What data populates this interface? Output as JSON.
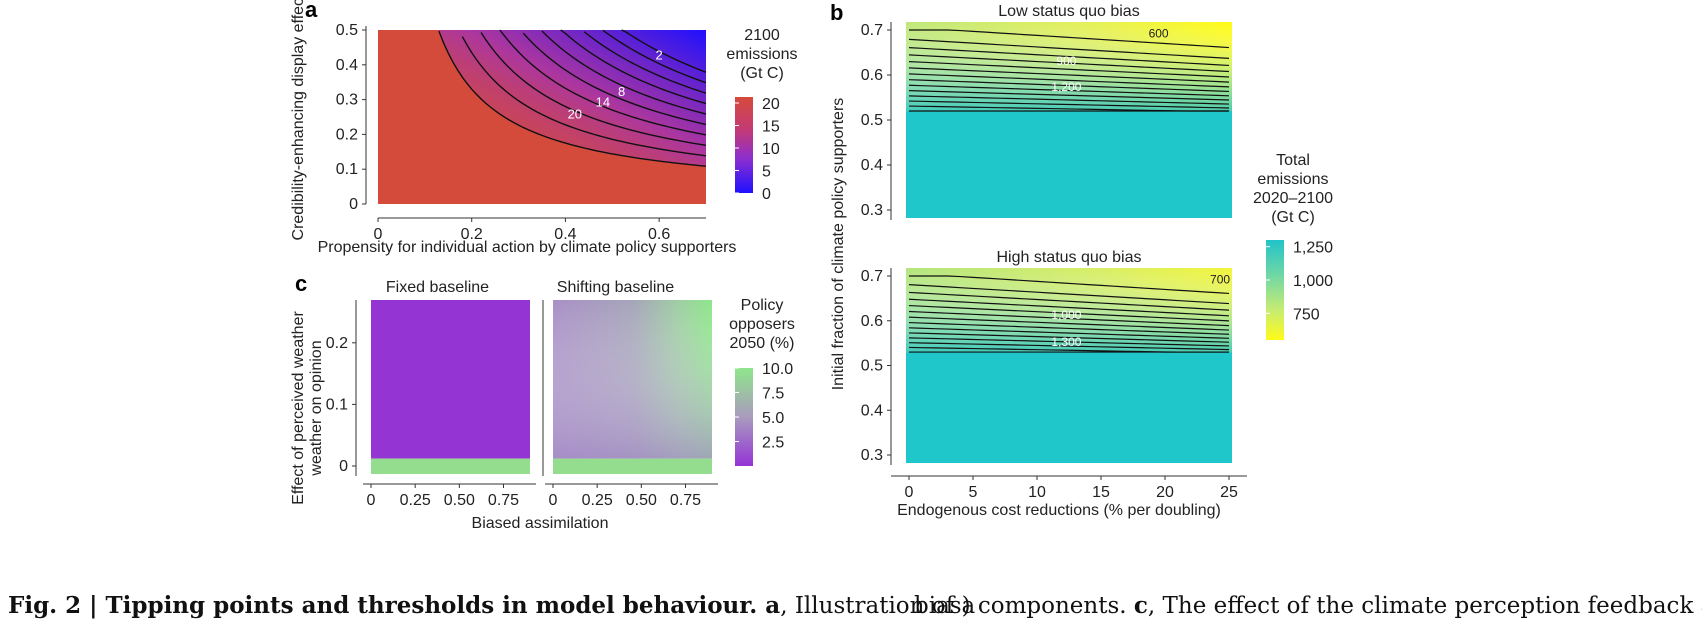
{
  "panel_a": {
    "letter": "a",
    "legend_title": [
      "2100",
      "emissions",
      "(Gt C)"
    ],
    "legend_ticks": [
      "20",
      "15",
      "10",
      "5",
      "0"
    ]
  },
  "panel_b": {
    "letter": "b",
    "legend_title": [
      "Total",
      "emissions",
      "2020–2100",
      "(Gt C)"
    ],
    "legend_ticks": [
      "1,250",
      "1,000",
      "750"
    ]
  },
  "panel_c": {
    "letter": "c",
    "legend_title": [
      "Policy",
      "opposers",
      "2050 (%)"
    ],
    "legend_ticks": [
      "10.0",
      "7.5",
      "5.0",
      "2.5"
    ]
  },
  "caption": {
    "left_bold": "Fig. 2 | Tipping points and thresholds in model behaviour. a",
    "left_rest": ", Illustration of a",
    "right_pre": "bias) components. ",
    "right_bold": "c",
    "right_rest": ", The effect of the climate perception feedback and"
  },
  "chart_data": [
    {
      "type": "heatmap",
      "panel": "a",
      "xlabel": "Propensity for individual action by climate policy supporters",
      "ylabel": "Credibility-enhancing display effect",
      "x_ticks": [
        "0",
        "0.2",
        "0.4",
        "0.6"
      ],
      "y_ticks": [
        "0",
        "0.1",
        "0.2",
        "0.3",
        "0.4",
        "0.5"
      ],
      "xlim": [
        0,
        0.7
      ],
      "ylim": [
        0,
        0.5
      ],
      "legend_title": "2100 emissions (Gt C)",
      "color_range": [
        0,
        21
      ],
      "contour_labels": [
        "2",
        "8",
        "14",
        "20"
      ],
      "contour_label_values": [
        2,
        8,
        14,
        20
      ],
      "contour_values": [
        20,
        18,
        16,
        14,
        12,
        10,
        8,
        6,
        4,
        2
      ],
      "contour_label_positions": [
        [
          0.6,
          0.415
        ],
        [
          0.52,
          0.31
        ],
        [
          0.48,
          0.28
        ],
        [
          0.42,
          0.245
        ]
      ],
      "note": "Uniform red (~21 Gt C) region below/left of the threshold curve; emissions fall steeply toward the upper right corner."
    },
    {
      "type": "heatmap",
      "panel": "b-top",
      "title": "Low status quo bias",
      "xlabel": "Endogenous cost reductions (% per doubling)",
      "ylabel": "Initial fraction of climate policy supporters",
      "x_ticks": [
        "0",
        "5",
        "10",
        "15",
        "20",
        "25"
      ],
      "y_ticks": [
        "0.3",
        "0.4",
        "0.5",
        "0.6",
        "0.7"
      ],
      "xlim": [
        0,
        25
      ],
      "ylim": [
        0.3,
        0.7
      ],
      "legend_title": "Total emissions 2020–2100 (Gt C)",
      "color_range": [
        550,
        1300
      ],
      "threshold_y": 0.52,
      "contour_labels": [
        "600",
        "900",
        "1,200"
      ],
      "contour_label_values": [
        600,
        900,
        1200
      ],
      "contour_label_positions": [
        [
          19.5,
          0.692
        ],
        [
          12.3,
          0.631
        ],
        [
          12.3,
          0.573
        ]
      ]
    },
    {
      "type": "heatmap",
      "panel": "b-bottom",
      "title": "High status quo bias",
      "xlabel": "Endogenous cost reductions (% per doubling)",
      "ylabel": "Initial fraction of climate policy supporters",
      "x_ticks": [
        "0",
        "5",
        "10",
        "15",
        "20",
        "25"
      ],
      "y_ticks": [
        "0.3",
        "0.4",
        "0.5",
        "0.6",
        "0.7"
      ],
      "xlim": [
        0,
        25
      ],
      "ylim": [
        0.3,
        0.7
      ],
      "legend_title": "Total emissions 2020–2100 (Gt C)",
      "color_range": [
        550,
        1300
      ],
      "threshold_y": 0.53,
      "contour_labels": [
        "700",
        "1,000",
        "1,300"
      ],
      "contour_label_values": [
        700,
        1000,
        1300
      ],
      "contour_label_positions": [
        [
          24.3,
          0.692
        ],
        [
          12.3,
          0.613
        ],
        [
          12.3,
          0.552
        ]
      ]
    },
    {
      "type": "heatmap",
      "panel": "c-left",
      "title": "Fixed baseline",
      "xlabel": "Biased assimilation",
      "ylabel": "Effect of perceived weather on opinion",
      "x_ticks": [
        "0",
        "0.25",
        "0.50",
        "0.75"
      ],
      "y_ticks": [
        "0",
        "0.1",
        "0.2"
      ],
      "xlim": [
        0,
        0.9
      ],
      "ylim": [
        0,
        0.25
      ],
      "legend_title": "Policy opposers 2050 (%)",
      "color_range": [
        0,
        10
      ],
      "values_note": "≈0.5% everywhere above y=0; ≈10% in the y=0 row"
    },
    {
      "type": "heatmap",
      "panel": "c-right",
      "title": "Shifting baseline",
      "xlabel": "Biased assimilation",
      "ylabel": "Effect of perceived weather on opinion",
      "x_ticks": [
        "0",
        "0.25",
        "0.50",
        "0.75"
      ],
      "y_ticks": [
        "0",
        "0.1",
        "0.2"
      ],
      "xlim": [
        0,
        0.9
      ],
      "ylim": [
        0,
        0.25
      ],
      "legend_title": "Policy opposers 2050 (%)",
      "color_range": [
        0,
        10
      ],
      "values_note": "≈4% at low biased assimilation, rising to ≈10% at high biased assimilation and high weather effect; ≈10% in the y=0 row"
    }
  ]
}
